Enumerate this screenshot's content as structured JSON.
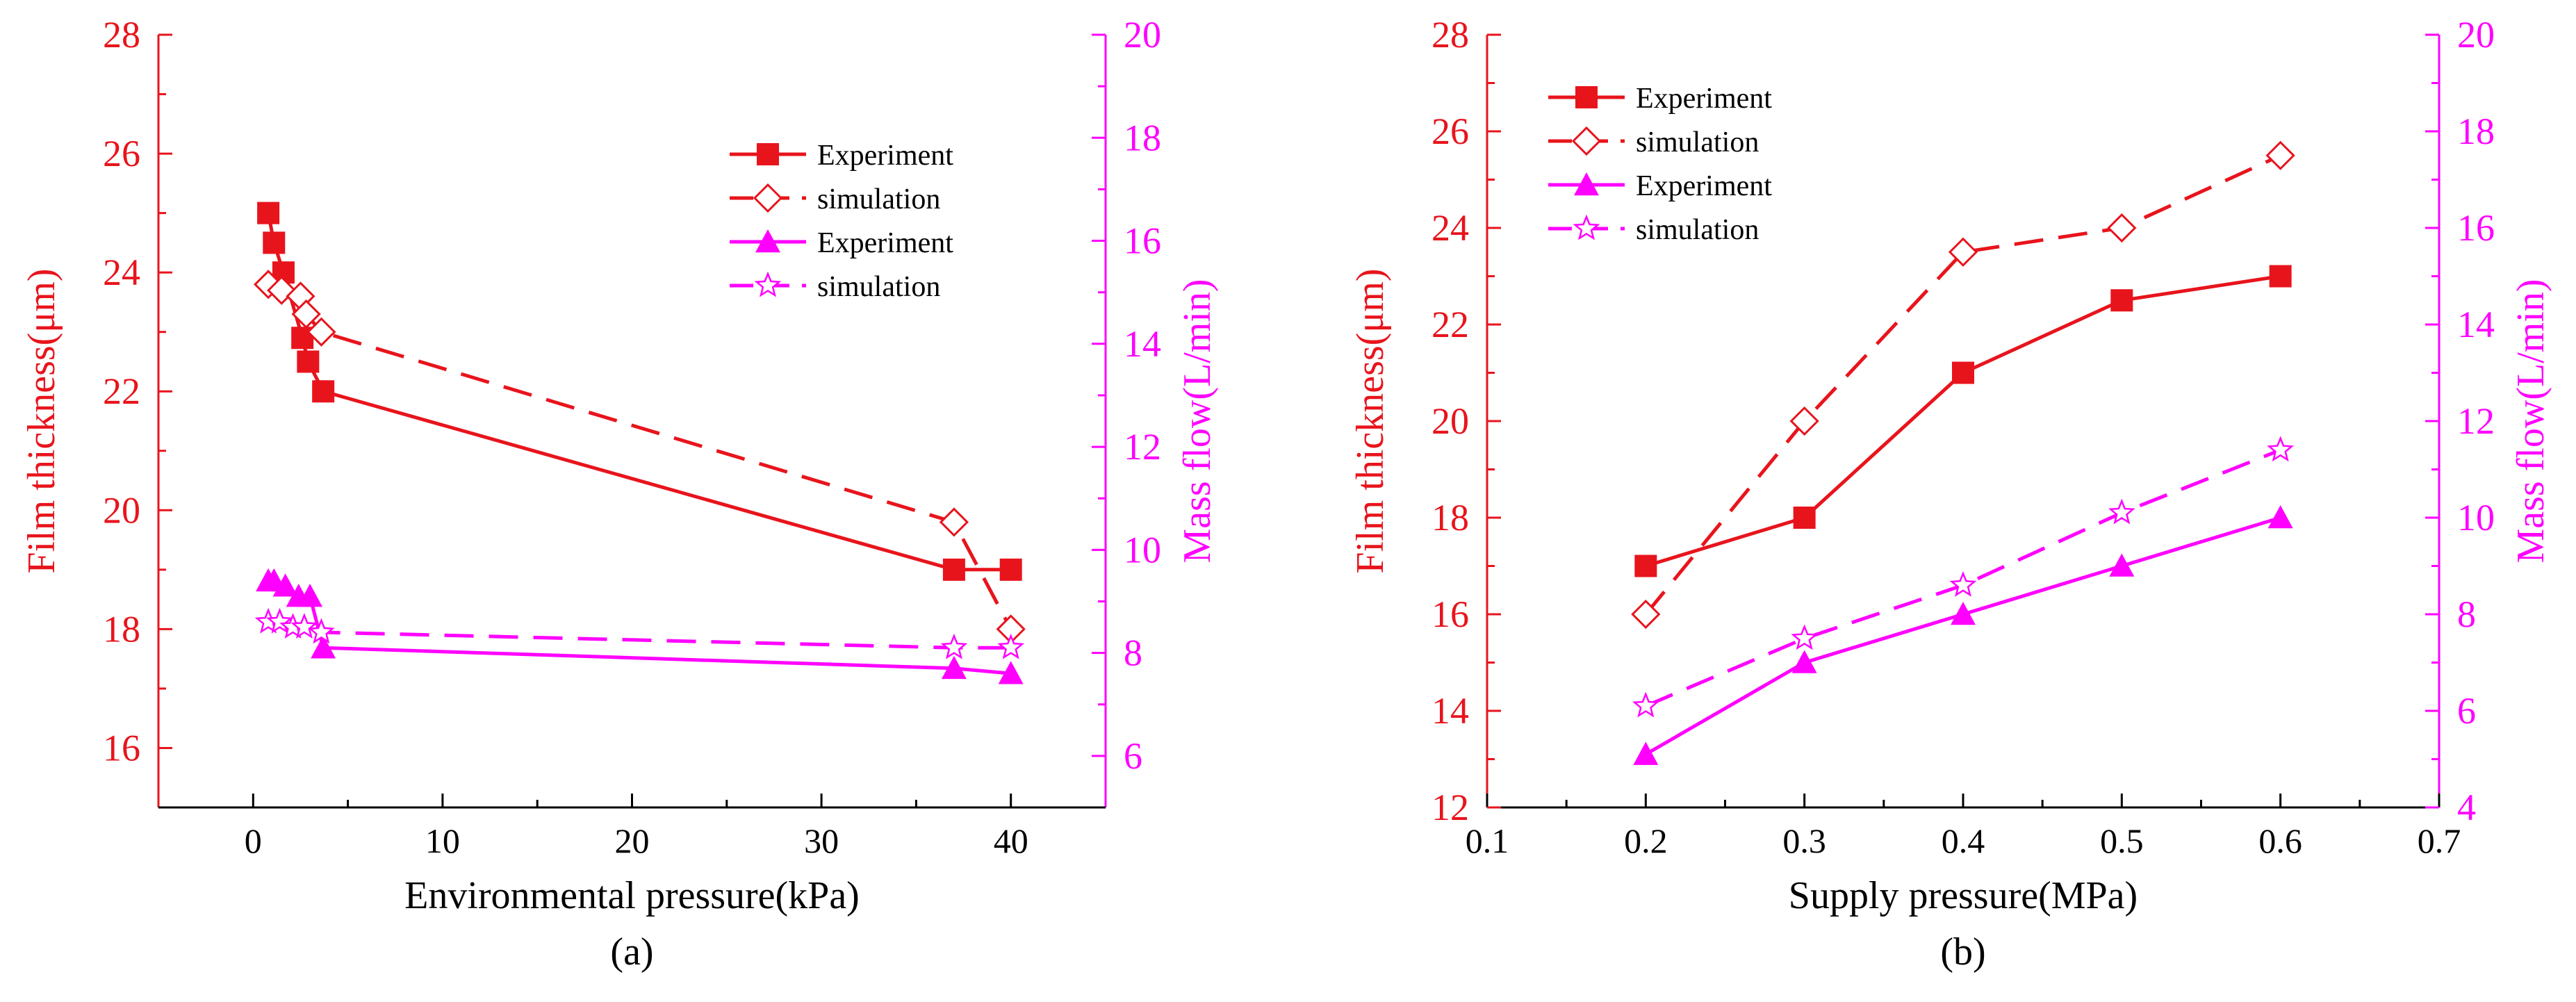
{
  "colors": {
    "red": "#e8141c",
    "magenta": "#ff00ff",
    "black": "#000000"
  },
  "chart_data": [
    {
      "type": "line",
      "caption": "(a)",
      "xlabel": "Environmental pressure(kPa)",
      "ylabel": "Film thickness(μm)",
      "y2label": "Mass flow(L/min)",
      "xlim": [
        -5,
        45
      ],
      "ylim": [
        15,
        28
      ],
      "y2lim": [
        5,
        20
      ],
      "xticks": [
        0,
        10,
        20,
        30,
        40
      ],
      "yticks": [
        16,
        18,
        20,
        22,
        24,
        26,
        28
      ],
      "y2ticks": [
        6,
        8,
        10,
        12,
        14,
        16,
        18,
        20
      ],
      "legend_position": "top-right",
      "series": [
        {
          "name": "Experiment",
          "axis": "left",
          "color": "#e8141c",
          "dash": false,
          "marker": "square",
          "x": [
            0.8,
            1.1,
            1.6,
            2.6,
            2.9,
            3.7,
            37,
            40
          ],
          "y": [
            25.0,
            24.5,
            24.0,
            22.9,
            22.5,
            22.0,
            19.0,
            19.0
          ]
        },
        {
          "name": "simulation",
          "axis": "left",
          "color": "#e8141c",
          "dash": true,
          "marker": "diamond",
          "x": [
            0.8,
            1.5,
            2.5,
            2.8,
            3.6,
            37,
            40
          ],
          "y": [
            23.8,
            23.7,
            23.6,
            23.3,
            23.0,
            19.8,
            18.0
          ]
        },
        {
          "name": "Experiment",
          "axis": "right",
          "color": "#ff00ff",
          "dash": false,
          "marker": "triangle",
          "x": [
            0.8,
            1.1,
            1.7,
            2.4,
            3.0,
            3.7,
            37,
            40
          ],
          "y": [
            9.4,
            9.4,
            9.3,
            9.1,
            9.1,
            8.1,
            7.7,
            7.6
          ]
        },
        {
          "name": "simulation",
          "axis": "right",
          "color": "#ff00ff",
          "dash": true,
          "marker": "star",
          "x": [
            0.8,
            1.4,
            2.1,
            2.7,
            3.6,
            37,
            40
          ],
          "y": [
            8.6,
            8.6,
            8.5,
            8.5,
            8.4,
            8.1,
            8.1
          ]
        }
      ]
    },
    {
      "type": "line",
      "caption": "(b)",
      "xlabel": "Supply pressure(MPa)",
      "ylabel": "Film thickness(μm)",
      "y2label": "Mass flow(L/min)",
      "xlim": [
        0.1,
        0.7
      ],
      "ylim": [
        12,
        28
      ],
      "y2lim": [
        4,
        20
      ],
      "xticks": [
        0.1,
        0.2,
        0.3,
        0.4,
        0.5,
        0.6,
        0.7
      ],
      "yticks": [
        12,
        14,
        16,
        18,
        20,
        22,
        24,
        26,
        28
      ],
      "y2ticks": [
        4,
        6,
        8,
        10,
        12,
        14,
        16,
        18,
        20
      ],
      "legend_position": "top-left",
      "series": [
        {
          "name": "Experiment",
          "axis": "left",
          "color": "#e8141c",
          "dash": false,
          "marker": "square",
          "x": [
            0.2,
            0.3,
            0.4,
            0.5,
            0.6
          ],
          "y": [
            17,
            18,
            21,
            22.5,
            23
          ]
        },
        {
          "name": "simulation",
          "axis": "left",
          "color": "#e8141c",
          "dash": true,
          "marker": "diamond",
          "x": [
            0.2,
            0.3,
            0.4,
            0.5,
            0.6
          ],
          "y": [
            16,
            20,
            23.5,
            24,
            25.5
          ]
        },
        {
          "name": "Experiment",
          "axis": "right",
          "color": "#ff00ff",
          "dash": false,
          "marker": "triangle",
          "x": [
            0.2,
            0.3,
            0.4,
            0.5,
            0.6
          ],
          "y": [
            5.1,
            7.0,
            8.0,
            9.0,
            10.0
          ]
        },
        {
          "name": "simulation",
          "axis": "right",
          "color": "#ff00ff",
          "dash": true,
          "marker": "star",
          "x": [
            0.2,
            0.3,
            0.4,
            0.5,
            0.6
          ],
          "y": [
            6.1,
            7.5,
            8.6,
            10.1,
            11.4
          ]
        }
      ]
    }
  ]
}
